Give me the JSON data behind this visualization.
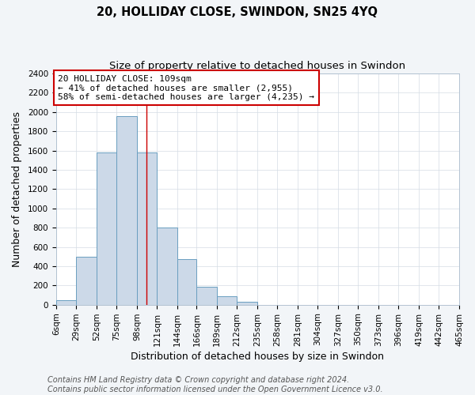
{
  "title": "20, HOLLIDAY CLOSE, SWINDON, SN25 4YQ",
  "subtitle": "Size of property relative to detached houses in Swindon",
  "xlabel": "Distribution of detached houses by size in Swindon",
  "ylabel": "Number of detached properties",
  "bin_edges": [
    6,
    29,
    52,
    75,
    98,
    121,
    144,
    166,
    189,
    212,
    235,
    258,
    281,
    304,
    327,
    350,
    373,
    396,
    419,
    442,
    465
  ],
  "bar_heights": [
    50,
    500,
    1580,
    1960,
    1580,
    800,
    470,
    185,
    90,
    30,
    0,
    0,
    0,
    0,
    0,
    0,
    0,
    0,
    0,
    0
  ],
  "bar_color": "#ccd9e8",
  "bar_edge_color": "#6a9ec0",
  "property_line_x": 109,
  "property_line_color": "#cc0000",
  "annotation_line1": "20 HOLLIDAY CLOSE: 109sqm",
  "annotation_line2": "← 41% of detached houses are smaller (2,955)",
  "annotation_line3": "58% of semi-detached houses are larger (4,235) →",
  "annotation_box_edge_color": "#cc0000",
  "ylim": [
    0,
    2400
  ],
  "yticks": [
    0,
    200,
    400,
    600,
    800,
    1000,
    1200,
    1400,
    1600,
    1800,
    2000,
    2200,
    2400
  ],
  "tick_labels": [
    "6sqm",
    "29sqm",
    "52sqm",
    "75sqm",
    "98sqm",
    "121sqm",
    "144sqm",
    "166sqm",
    "189sqm",
    "212sqm",
    "235sqm",
    "258sqm",
    "281sqm",
    "304sqm",
    "327sqm",
    "350sqm",
    "373sqm",
    "396sqm",
    "419sqm",
    "442sqm",
    "465sqm"
  ],
  "footer_line1": "Contains HM Land Registry data © Crown copyright and database right 2024.",
  "footer_line2": "Contains public sector information licensed under the Open Government Licence v3.0.",
  "background_color": "#f2f5f8",
  "plot_background_color": "#ffffff",
  "grid_color": "#d4dce4",
  "title_fontsize": 10.5,
  "subtitle_fontsize": 9.5,
  "axis_label_fontsize": 9,
  "tick_fontsize": 7.5,
  "annotation_fontsize": 8,
  "footer_fontsize": 7
}
